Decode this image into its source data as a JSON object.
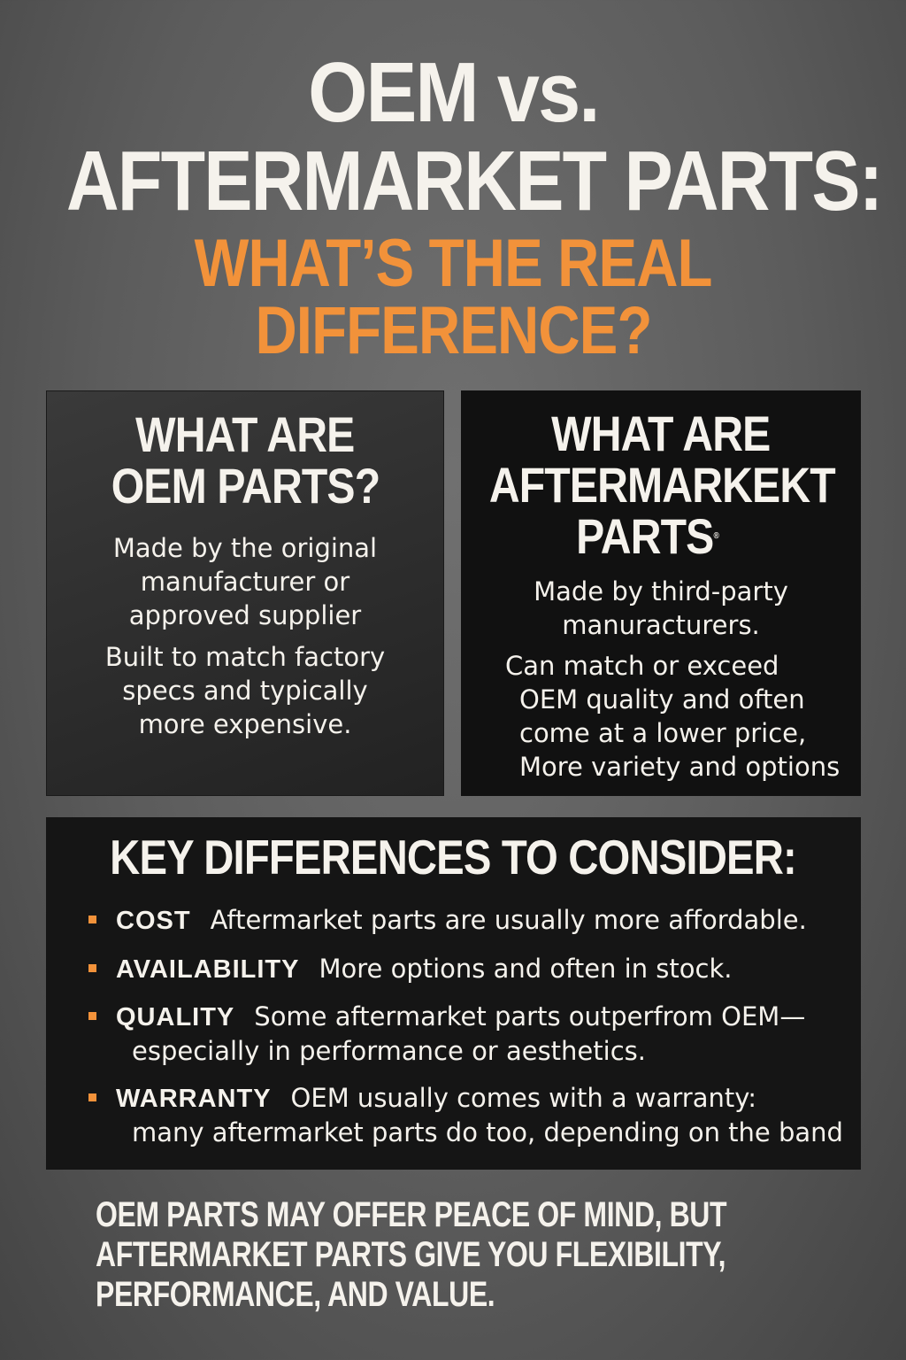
{
  "header": {
    "line1": "OEM vs.",
    "line2": "AFTERMARKET PARTS:",
    "subtitle_line1": "WHAT’S THE REAL",
    "subtitle_line2": "DIFFERENCE?",
    "accent_color": "#f2923a"
  },
  "oem_box": {
    "heading_line1": "WHAT ARE",
    "heading_line2": "OEM PARTS?",
    "para1": [
      "Made by the original",
      "manufacturer or",
      "approved supplier"
    ],
    "para2": [
      "Built to match factory",
      "specs and typically",
      "more expensive."
    ]
  },
  "aftermarket_box": {
    "heading_line1": "WHAT ARE",
    "heading_line2": "AFTERMARKEKT",
    "heading_line3": "PARTS",
    "heading_mark": "®",
    "para1": [
      "Made by third-party",
      "manuracturers."
    ],
    "para2": [
      "Can match or exceed",
      "OEM quality and often",
      "come at a lower price,",
      "More variety and options"
    ]
  },
  "key_differences": {
    "heading": "KEY DIFFERENCES TO CONSIDER:",
    "items": [
      {
        "label": "COST",
        "text": "Aftermarket parts are usually more affordable.",
        "continuation": ""
      },
      {
        "label": "AVAILABILITY",
        "text": "More options and often in stock.",
        "continuation": ""
      },
      {
        "label": "QUALITY",
        "text": "Some aftermarket parts outperfrom OEM—",
        "continuation": "especially in performance or aesthetics."
      },
      {
        "label": "WARRANTY",
        "text": "OEM usually comes with a warranty:",
        "continuation": "many aftermarket parts do too, depending on the band"
      }
    ]
  },
  "footer": {
    "lines": [
      "OEM PARTS MAY OFFER PEACE OF MIND, BUT",
      "AFTERMARKET PARTS GIVE YOU FLEXIBILITY,",
      "PERFORMANCE, AND VALUE."
    ]
  }
}
